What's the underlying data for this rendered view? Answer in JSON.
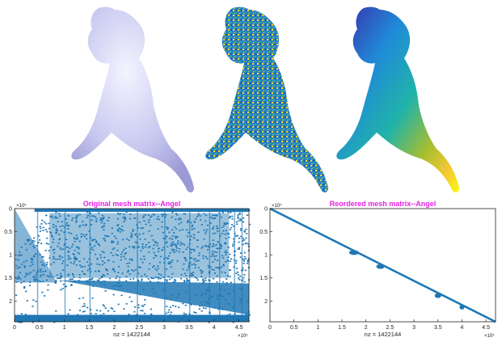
{
  "figure": {
    "renders": [
      {
        "name": "angel-shaded-render",
        "colormap": "lavender-shaded"
      },
      {
        "name": "angel-random-order-coloring",
        "colormap": "parula-noisy"
      },
      {
        "name": "angel-reordered-coloring",
        "colormap": "parula-smooth"
      }
    ],
    "colors": {
      "spy_blue": "#1f77b4",
      "title_magenta": "#e61ee6",
      "statue_base": "#c8c8f0"
    }
  },
  "chart_data": [
    {
      "type": "scatter",
      "title": "Original mesh matrix--Angel",
      "xlabel": "nz = 1422144",
      "x_exponent": "×10⁵",
      "y_exponent": "×10⁵",
      "xlim": [
        0,
        4.7
      ],
      "ylim": [
        0,
        2.45
      ],
      "y_reversed": true,
      "xticks": [
        "0",
        "0.5",
        "1",
        "1.5",
        "2",
        "2.5",
        "3",
        "3.5",
        "4",
        "4.5"
      ],
      "yticks": [
        "0",
        "0.5",
        "1",
        "1.5",
        "2"
      ],
      "xtick_values": [
        0,
        0.5,
        1,
        1.5,
        2,
        2.5,
        3,
        3.5,
        4,
        4.5
      ],
      "ytick_values": [
        0,
        0.5,
        1,
        1.5,
        2
      ],
      "pattern": "scattered",
      "grid": false
    },
    {
      "type": "scatter",
      "title": "Reordered mesh matrix--Angel",
      "xlabel": "nz = 1422144",
      "x_exponent": "×10⁵",
      "y_exponent": "×10⁵",
      "xlim": [
        0,
        4.7
      ],
      "ylim": [
        0,
        2.45
      ],
      "y_reversed": true,
      "xticks": [
        "0",
        "0.5",
        "1",
        "1.5",
        "2",
        "2.5",
        "3",
        "3.5",
        "4",
        "4.5"
      ],
      "yticks": [
        "0",
        "0.5",
        "1",
        "1.5",
        "2"
      ],
      "xtick_values": [
        0,
        0.5,
        1,
        1.5,
        2,
        2.5,
        3,
        3.5,
        4,
        4.5
      ],
      "ytick_values": [
        0,
        0.5,
        1,
        1.5,
        2
      ],
      "pattern": "banded-diagonal",
      "grid": false
    }
  ]
}
